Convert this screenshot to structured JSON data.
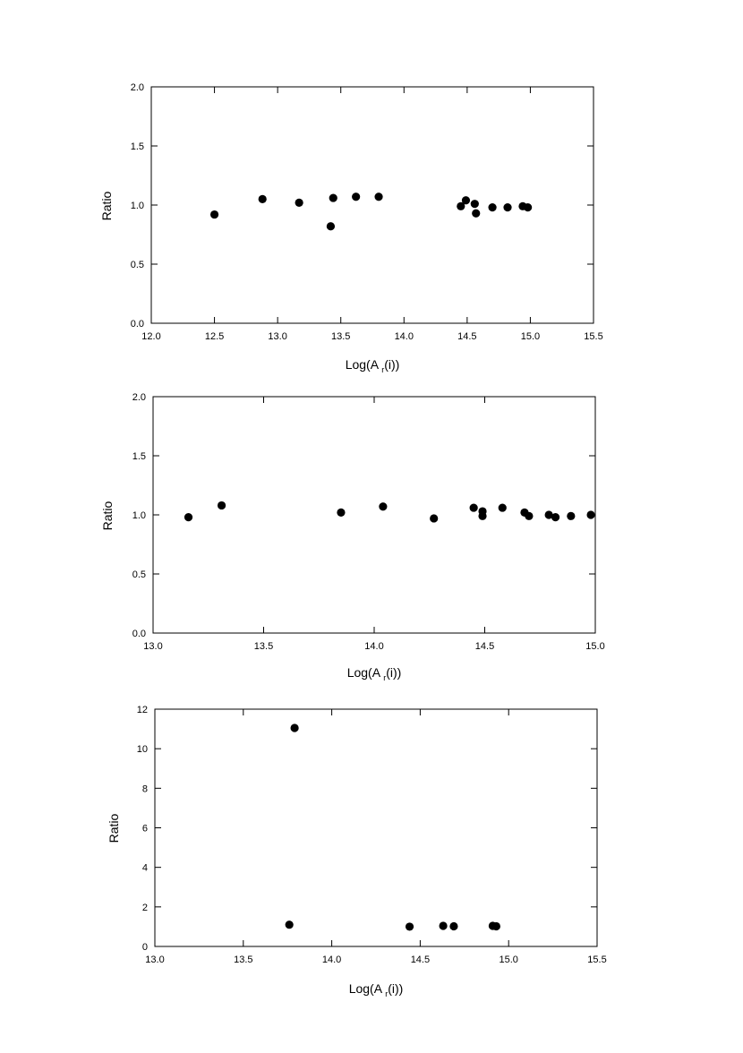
{
  "chart_data": [
    {
      "type": "scatter",
      "xlabel": "Log(A",
      "xlabel_subscript": "r",
      "xlabel_suffix": "(i))",
      "ylabel": "Ratio",
      "xlim": [
        12.0,
        15.5
      ],
      "ylim": [
        0.0,
        2.0
      ],
      "xticks": [
        12.0,
        12.5,
        13.0,
        13.5,
        14.0,
        14.5,
        15.0,
        15.5
      ],
      "yticks": [
        0.0,
        0.5,
        1.0,
        1.5,
        2.0
      ],
      "xtick_labels": [
        "12.0",
        "12.5",
        "13.0",
        "13.5",
        "14.0",
        "14.5",
        "15.0",
        "15.5"
      ],
      "ytick_labels": [
        "0.0",
        "0.5",
        "1.0",
        "1.5",
        "2.0"
      ],
      "grid": false,
      "series": [
        {
          "x": [
            12.5,
            12.88,
            13.17,
            13.42,
            13.44,
            13.62,
            13.8,
            14.45,
            14.49,
            14.56,
            14.57,
            14.7,
            14.82,
            14.94,
            14.98
          ],
          "y": [
            0.92,
            1.05,
            1.02,
            0.82,
            1.06,
            1.07,
            1.07,
            0.99,
            1.04,
            1.01,
            0.93,
            0.98,
            0.98,
            0.99,
            0.98
          ]
        }
      ]
    },
    {
      "type": "scatter",
      "xlabel": "Log(A",
      "xlabel_subscript": "r",
      "xlabel_suffix": "(i))",
      "ylabel": "Ratio",
      "xlim": [
        13.0,
        15.0
      ],
      "ylim": [
        0.0,
        2.0
      ],
      "xticks": [
        13.0,
        13.5,
        14.0,
        14.5,
        15.0
      ],
      "yticks": [
        0.0,
        0.5,
        1.0,
        1.5,
        2.0
      ],
      "xtick_labels": [
        "13.0",
        "13.5",
        "14.0",
        "14.5",
        "15.0"
      ],
      "ytick_labels": [
        "0.0",
        "0.5",
        "1.0",
        "1.5",
        "2.0"
      ],
      "grid": false,
      "series": [
        {
          "x": [
            13.16,
            13.31,
            13.85,
            14.04,
            14.27,
            14.45,
            14.49,
            14.49,
            14.58,
            14.68,
            14.7,
            14.79,
            14.82,
            14.89,
            14.98
          ],
          "y": [
            0.98,
            1.08,
            1.02,
            1.07,
            0.97,
            1.06,
            1.03,
            0.99,
            1.06,
            1.02,
            0.99,
            1.0,
            0.98,
            0.99,
            1.0
          ]
        }
      ]
    },
    {
      "type": "scatter",
      "xlabel": "Log(A",
      "xlabel_subscript": "r",
      "xlabel_suffix": "(i))",
      "ylabel": "Ratio",
      "xlim": [
        13.0,
        15.5
      ],
      "ylim": [
        0,
        12
      ],
      "xticks": [
        13.0,
        13.5,
        14.0,
        14.5,
        15.0,
        15.5
      ],
      "yticks": [
        0,
        2,
        4,
        6,
        8,
        10,
        12
      ],
      "xtick_labels": [
        "13.0",
        "13.5",
        "14.0",
        "14.5",
        "15.0",
        "15.5"
      ],
      "ytick_labels": [
        "0",
        "2",
        "4",
        "6",
        "8",
        "10",
        "12"
      ],
      "grid": false,
      "series": [
        {
          "x": [
            13.76,
            13.79,
            14.44,
            14.63,
            14.69,
            14.91,
            14.93
          ],
          "y": [
            1.1,
            11.05,
            1.0,
            1.04,
            1.02,
            1.04,
            1.02
          ]
        }
      ]
    }
  ]
}
